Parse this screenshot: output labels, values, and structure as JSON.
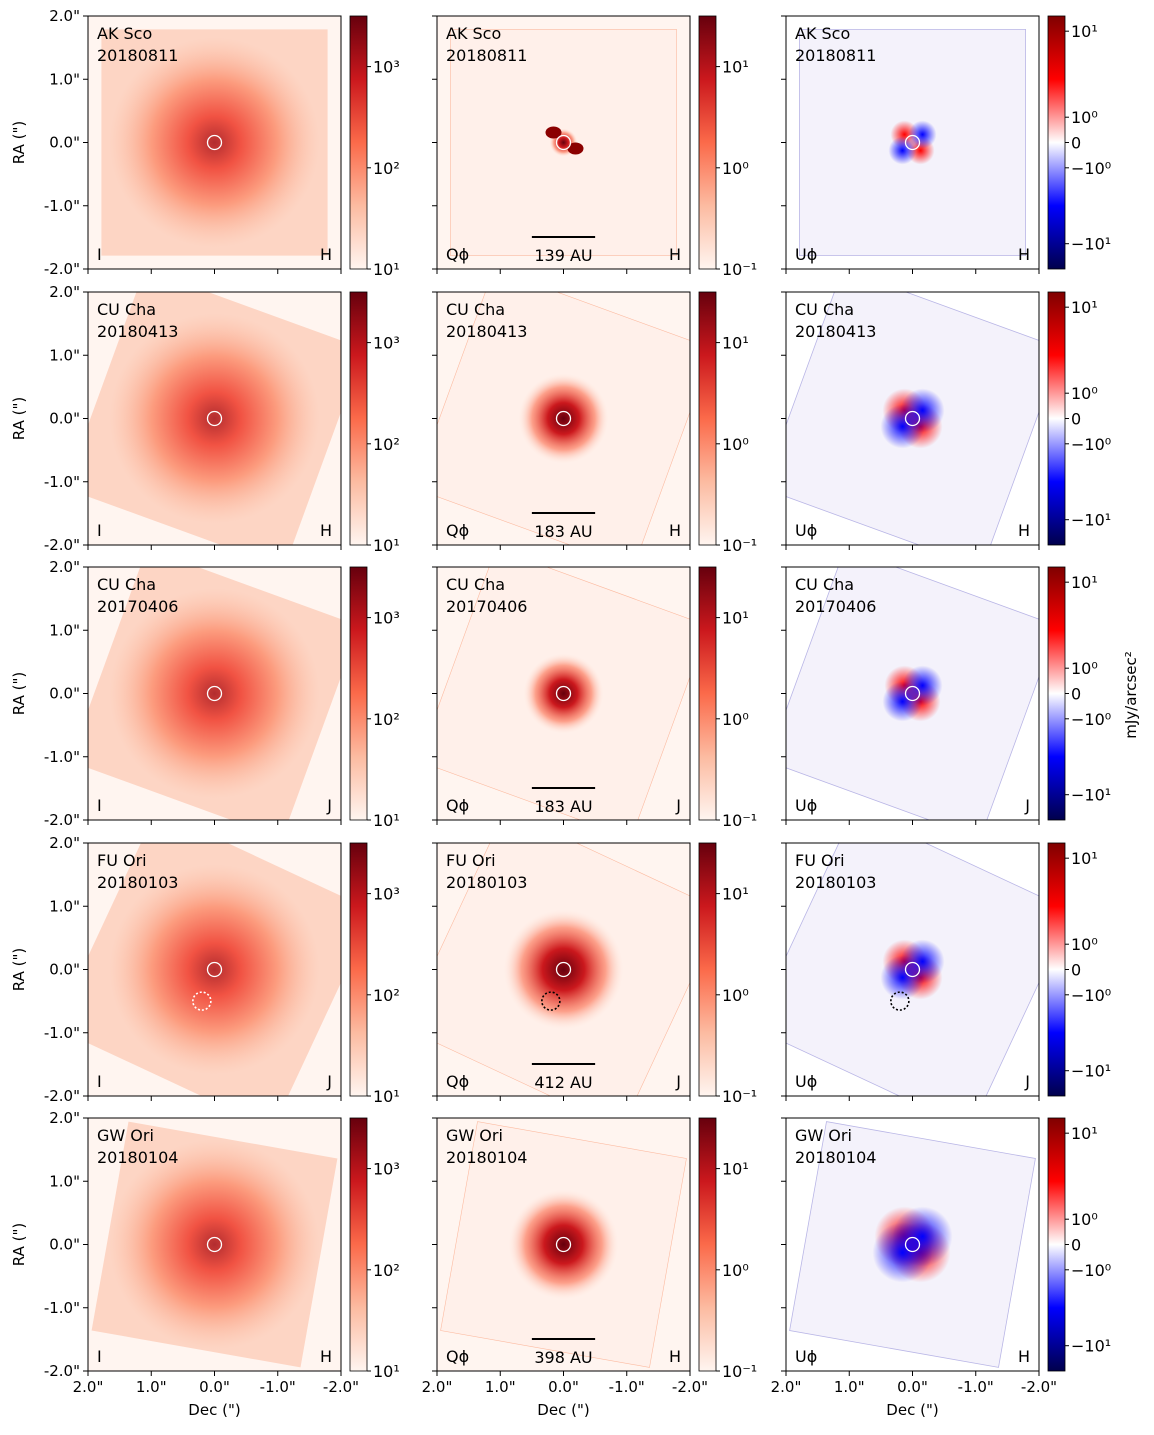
{
  "figure": {
    "xlabel": "Dec (\")",
    "ylabel": "RA (\")",
    "cbar_unit_label": "mJy/arcsec²"
  },
  "chart_data": {
    "type": "image_grid",
    "axes": {
      "x_ticks": [
        "2.0\"",
        "1.0\"",
        "0.0\"",
        "-1.0\"",
        "-2.0\""
      ],
      "y_ticks": [
        "2.0\"",
        "1.0\"",
        "0.0\"",
        "-1.0\"",
        "-2.0\""
      ],
      "x_range": [
        2.0,
        -2.0
      ],
      "y_range": [
        -2.0,
        2.0
      ]
    },
    "colorbars": {
      "I": {
        "cmap": "Reds",
        "scale": "log",
        "ticks": [
          "10¹",
          "10²",
          "10³"
        ]
      },
      "Qphi": {
        "cmap": "Reds",
        "scale": "log",
        "ticks": [
          "10⁻¹",
          "10⁰",
          "10¹"
        ]
      },
      "Uphi": {
        "cmap": "seismic",
        "scale": "symlog",
        "ticks": [
          "10¹",
          "10⁰",
          "0",
          "−10⁰",
          "−10¹"
        ]
      }
    },
    "rows": [
      {
        "target": "AK Sco",
        "date": "20180811",
        "band": "H",
        "scale_bar": "139 AU",
        "dashed_circle": null
      },
      {
        "target": "CU Cha",
        "date": "20180413",
        "band": "H",
        "scale_bar": "183 AU",
        "dashed_circle": null
      },
      {
        "target": "CU Cha",
        "date": "20170406",
        "band": "J",
        "scale_bar": "183 AU",
        "dashed_circle": null
      },
      {
        "target": "FU Ori",
        "date": "20180103",
        "band": "J",
        "scale_bar": "412 AU",
        "dashed_circle": [
          0.2,
          -0.5
        ]
      },
      {
        "target": "GW Ori",
        "date": "20180104",
        "band": "H",
        "scale_bar": "398 AU",
        "dashed_circle": null
      }
    ],
    "columns": [
      {
        "label": "I",
        "kind": "I"
      },
      {
        "label": "Qϕ",
        "kind": "Qphi"
      },
      {
        "label": "Uϕ",
        "kind": "Uphi"
      }
    ]
  }
}
